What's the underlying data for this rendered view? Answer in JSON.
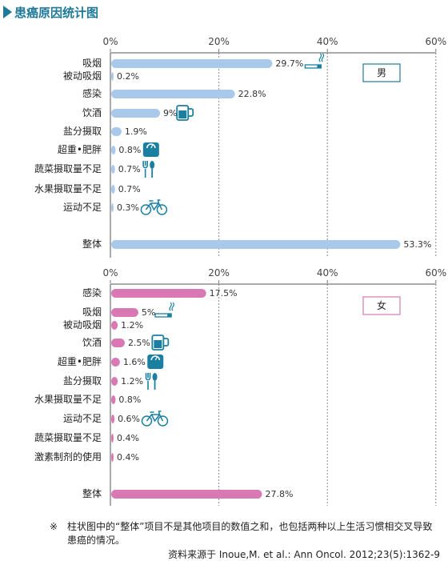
{
  "page": {
    "title": "患癌原因统计图"
  },
  "chart_data": [
    {
      "type": "bar",
      "title": "",
      "legend": "男",
      "xlim": [
        0,
        60
      ],
      "ticks": [
        "0%",
        "20%",
        "40%",
        "60%"
      ],
      "tick_values": [
        0,
        20,
        40,
        60
      ],
      "color": "#a9c9ea",
      "legend_color": "#1f7a99",
      "categories": [
        "吸烟",
        "被动吸烟",
        "感染",
        "饮酒",
        "盐分摄取",
        "超重•肥胖",
        "蔬菜摄取量不足",
        "水果摄取量不足",
        "运动不足",
        "整体"
      ],
      "values": [
        29.7,
        0.2,
        22.8,
        9,
        1.9,
        0.8,
        0.7,
        0.7,
        0.3,
        53.3
      ],
      "value_labels": [
        "29.7%",
        "0.2%",
        "22.8%",
        "9%",
        "1.9%",
        "0.8%",
        "0.7%",
        "0.7%",
        "0.3%",
        "53.3%"
      ],
      "icons": [
        "cigarette-icon",
        "",
        "",
        "beer-mug-icon",
        "",
        "scale-icon",
        "fork-spoon-icon",
        "",
        "bicycle-icon",
        ""
      ]
    },
    {
      "type": "bar",
      "title": "",
      "legend": "女",
      "xlim": [
        0,
        60
      ],
      "ticks": [
        "0%",
        "20%",
        "40%",
        "60%"
      ],
      "tick_values": [
        0,
        20,
        40,
        60
      ],
      "color": "#d978b5",
      "legend_color": "#d978b5",
      "categories": [
        "感染",
        "吸烟",
        "被动吸烟",
        "饮酒",
        "超重•肥胖",
        "盐分摄取",
        "水果摄取量不足",
        "运动不足",
        "蔬菜摄取量不足",
        "激素制剂的使用",
        "整体"
      ],
      "values": [
        17.5,
        5,
        1.2,
        2.5,
        1.6,
        1.2,
        0.8,
        0.6,
        0.4,
        0.4,
        27.8
      ],
      "value_labels": [
        "17.5%",
        "5%",
        "1.2%",
        "2.5%",
        "1.6%",
        "1.2%",
        "0.8%",
        "0.6%",
        "0.4%",
        "0.4%",
        "27.8%"
      ],
      "icons": [
        "",
        "cigarette-icon",
        "",
        "beer-mug-icon",
        "scale-icon",
        "fork-spoon-icon",
        "",
        "bicycle-icon",
        "",
        "",
        ""
      ]
    }
  ],
  "note": {
    "mark": "※",
    "text": "柱状图中的“整体”项目不是其他项目的数值之和，也包括两种以上生活习惯相交叉导致患癌的情况。"
  },
  "source": "资料来源于 Inoue,M. et al.: Ann Oncol. 2012;23(5):1362-9",
  "colors": {
    "accent": "#1f7a99",
    "icon": "#1a7fa0",
    "grid": "#888888"
  }
}
